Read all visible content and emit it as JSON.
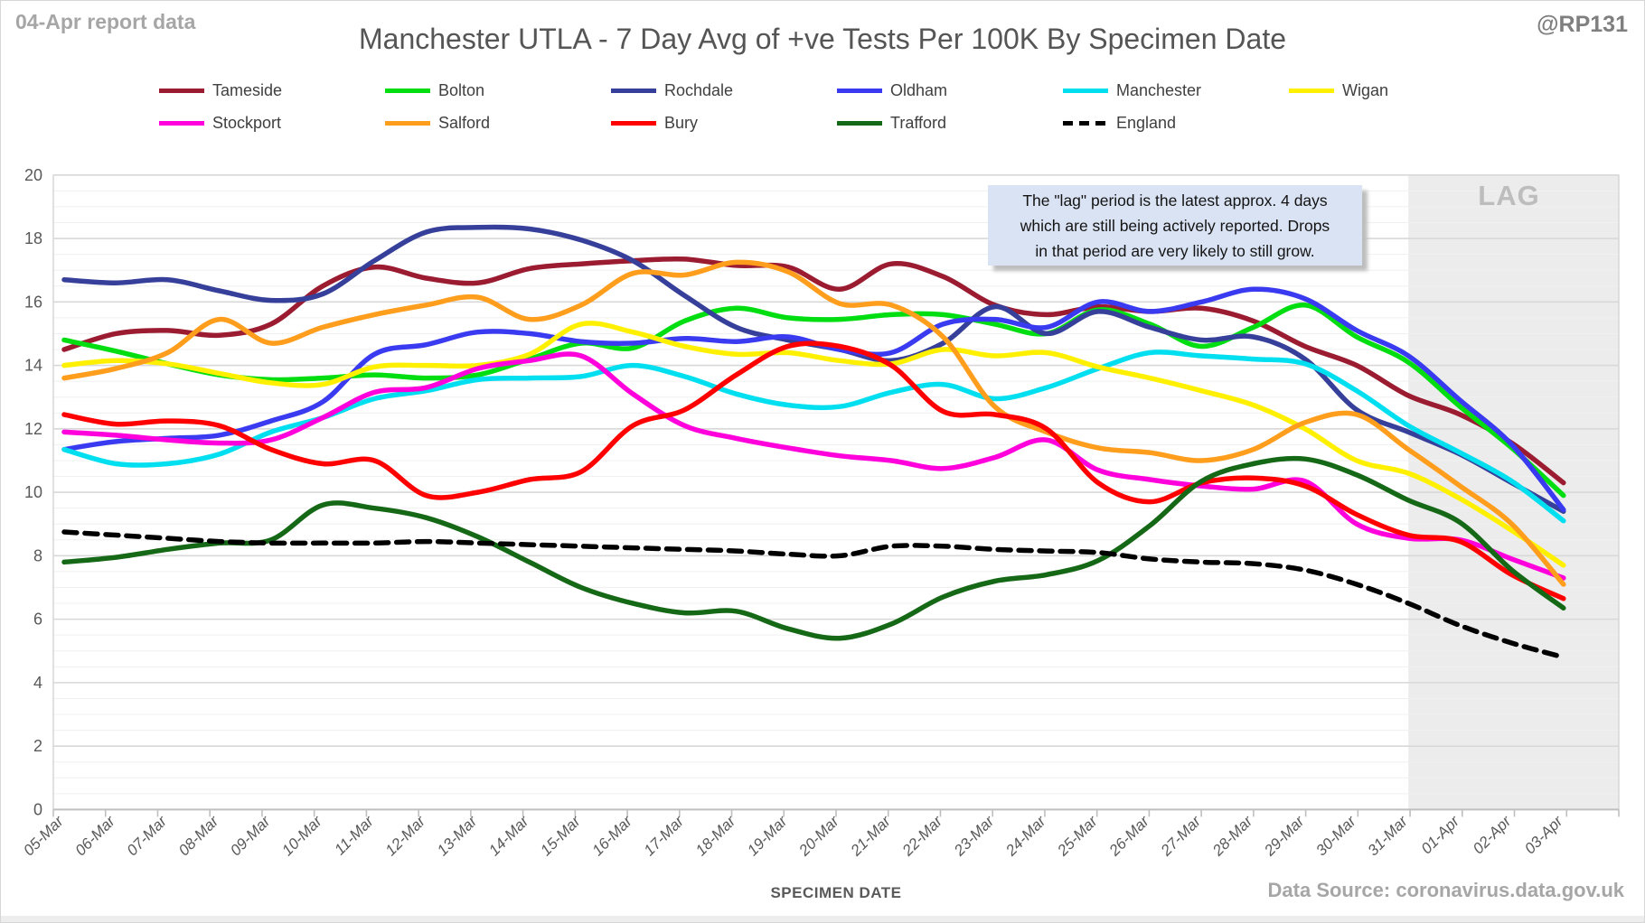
{
  "header": {
    "report_note": "04-Apr report data",
    "title": "Manchester UTLA - 7 Day Avg of +ve Tests Per 100K By Specimen Date",
    "watermark": "@RP131"
  },
  "annotation": {
    "lines": [
      "The \"lag\" period is the latest approx. 4 days",
      "which are still being actively reported.  Drops",
      "in that period are very likely to still grow."
    ],
    "bg_color": "#dae3f3"
  },
  "lag": {
    "label": "LAG",
    "start_category": "31-Mar",
    "fill": "#ececec",
    "label_color": "#bdbdbd"
  },
  "footer": {
    "xaxis_title": "SPECIMEN DATE",
    "data_source": "Data Source: coronavirus.data.gov.uk"
  },
  "chart_data": {
    "type": "line",
    "title": "Manchester UTLA - 7 Day Avg of +ve Tests Per 100K By Specimen Date",
    "xlabel": "SPECIMEN DATE",
    "ylabel": "",
    "ylim": [
      0,
      20
    ],
    "y_major_step": 2,
    "y_minor_step": 0.5,
    "grid": "on",
    "legend_position": "top",
    "categories": [
      "05-Mar",
      "06-Mar",
      "07-Mar",
      "08-Mar",
      "09-Mar",
      "10-Mar",
      "11-Mar",
      "12-Mar",
      "13-Mar",
      "14-Mar",
      "15-Mar",
      "16-Mar",
      "17-Mar",
      "18-Mar",
      "19-Mar",
      "20-Mar",
      "21-Mar",
      "22-Mar",
      "23-Mar",
      "24-Mar",
      "25-Mar",
      "26-Mar",
      "27-Mar",
      "28-Mar",
      "29-Mar",
      "30-Mar",
      "31-Mar",
      "01-Apr",
      "02-Apr",
      "03-Apr"
    ],
    "series": [
      {
        "name": "Tameside",
        "color": "#9b1b30",
        "dashed": false,
        "values": [
          14.5,
          15.0,
          15.1,
          14.95,
          15.3,
          16.5,
          17.1,
          16.75,
          16.6,
          17.05,
          17.2,
          17.3,
          17.35,
          17.15,
          17.1,
          16.4,
          17.2,
          16.8,
          15.9,
          15.6,
          15.85,
          15.7,
          15.8,
          15.4,
          14.6,
          14.0,
          13.05,
          12.45,
          11.55,
          10.3
        ]
      },
      {
        "name": "Bolton",
        "color": "#00dd11",
        "dashed": false,
        "values": [
          14.8,
          14.45,
          14.05,
          13.7,
          13.55,
          13.6,
          13.7,
          13.6,
          13.7,
          14.2,
          14.7,
          14.55,
          15.4,
          15.8,
          15.5,
          15.45,
          15.6,
          15.6,
          15.3,
          15.0,
          15.75,
          15.3,
          14.6,
          15.2,
          15.9,
          14.9,
          14.1,
          12.7,
          11.4,
          9.9
        ]
      },
      {
        "name": "Rochdale",
        "color": "#36409a",
        "dashed": false,
        "values": [
          16.7,
          16.6,
          16.7,
          16.35,
          16.05,
          16.25,
          17.3,
          18.2,
          18.35,
          18.3,
          17.95,
          17.3,
          16.2,
          15.2,
          14.8,
          14.5,
          14.15,
          14.7,
          15.85,
          15.0,
          15.7,
          15.2,
          14.8,
          14.9,
          14.2,
          12.6,
          11.9,
          11.2,
          10.3,
          9.4
        ]
      },
      {
        "name": "Oldham",
        "color": "#3a3bf0",
        "dashed": false,
        "values": [
          11.35,
          11.6,
          11.7,
          11.8,
          12.25,
          12.85,
          14.35,
          14.65,
          15.05,
          15.0,
          14.75,
          14.7,
          14.85,
          14.75,
          14.9,
          14.5,
          14.4,
          15.3,
          15.45,
          15.2,
          16.0,
          15.7,
          16.0,
          16.4,
          16.1,
          15.1,
          14.3,
          12.9,
          11.5,
          9.45
        ]
      },
      {
        "name": "Manchester",
        "color": "#00dff0",
        "dashed": false,
        "values": [
          11.35,
          10.9,
          10.9,
          11.2,
          11.9,
          12.35,
          12.95,
          13.2,
          13.55,
          13.6,
          13.65,
          14.0,
          13.65,
          13.1,
          12.75,
          12.7,
          13.15,
          13.4,
          12.95,
          13.3,
          13.9,
          14.4,
          14.3,
          14.2,
          14.05,
          13.2,
          12.1,
          11.25,
          10.35,
          9.1
        ]
      },
      {
        "name": "Wigan",
        "color": "#fff000",
        "dashed": false,
        "values": [
          14.0,
          14.15,
          14.05,
          13.75,
          13.45,
          13.4,
          13.95,
          14.0,
          14.0,
          14.35,
          15.3,
          15.05,
          14.6,
          14.35,
          14.4,
          14.15,
          14.05,
          14.5,
          14.3,
          14.4,
          13.95,
          13.6,
          13.2,
          12.75,
          12.0,
          11.0,
          10.6,
          9.8,
          8.8,
          7.7
        ]
      },
      {
        "name": "Stockport",
        "color": "#ff00dd",
        "dashed": false,
        "values": [
          11.9,
          11.8,
          11.65,
          11.55,
          11.65,
          12.35,
          13.15,
          13.3,
          13.9,
          14.15,
          14.3,
          13.1,
          12.1,
          11.7,
          11.4,
          11.15,
          11.0,
          10.75,
          11.1,
          11.65,
          10.7,
          10.4,
          10.2,
          10.1,
          10.35,
          9.0,
          8.55,
          8.5,
          7.9,
          7.3
        ]
      },
      {
        "name": "Salford",
        "color": "#ff9d1c",
        "dashed": false,
        "values": [
          13.6,
          13.9,
          14.4,
          15.45,
          14.7,
          15.2,
          15.6,
          15.9,
          16.15,
          15.45,
          15.9,
          16.9,
          16.85,
          17.25,
          16.95,
          15.95,
          15.9,
          14.9,
          12.7,
          11.9,
          11.4,
          11.25,
          11.0,
          11.35,
          12.2,
          12.45,
          11.35,
          10.2,
          9.0,
          7.1
        ]
      },
      {
        "name": "Bury",
        "color": "#fe0000",
        "dashed": false,
        "values": [
          12.45,
          12.15,
          12.25,
          12.1,
          11.35,
          10.9,
          11.0,
          9.9,
          10.0,
          10.4,
          10.65,
          12.1,
          12.6,
          13.7,
          14.6,
          14.6,
          14.0,
          12.55,
          12.45,
          12.0,
          10.3,
          9.7,
          10.3,
          10.45,
          10.2,
          9.3,
          8.65,
          8.45,
          7.4,
          6.65
        ]
      },
      {
        "name": "Trafford",
        "color": "#156815",
        "dashed": false,
        "values": [
          7.8,
          7.95,
          8.2,
          8.4,
          8.5,
          9.6,
          9.5,
          9.2,
          8.6,
          7.8,
          7.0,
          6.5,
          6.2,
          6.25,
          5.7,
          5.4,
          5.85,
          6.7,
          7.2,
          7.4,
          7.85,
          8.95,
          10.35,
          10.9,
          11.05,
          10.55,
          9.75,
          9.05,
          7.55,
          6.35
        ]
      },
      {
        "name": "England",
        "color": "#000000",
        "dashed": true,
        "values": [
          8.75,
          8.65,
          8.55,
          8.45,
          8.4,
          8.4,
          8.4,
          8.45,
          8.4,
          8.35,
          8.3,
          8.25,
          8.2,
          8.15,
          8.05,
          8.0,
          8.3,
          8.3,
          8.2,
          8.15,
          8.1,
          7.9,
          7.8,
          7.75,
          7.55,
          7.1,
          6.5,
          5.8,
          5.25,
          4.8
        ]
      }
    ]
  }
}
